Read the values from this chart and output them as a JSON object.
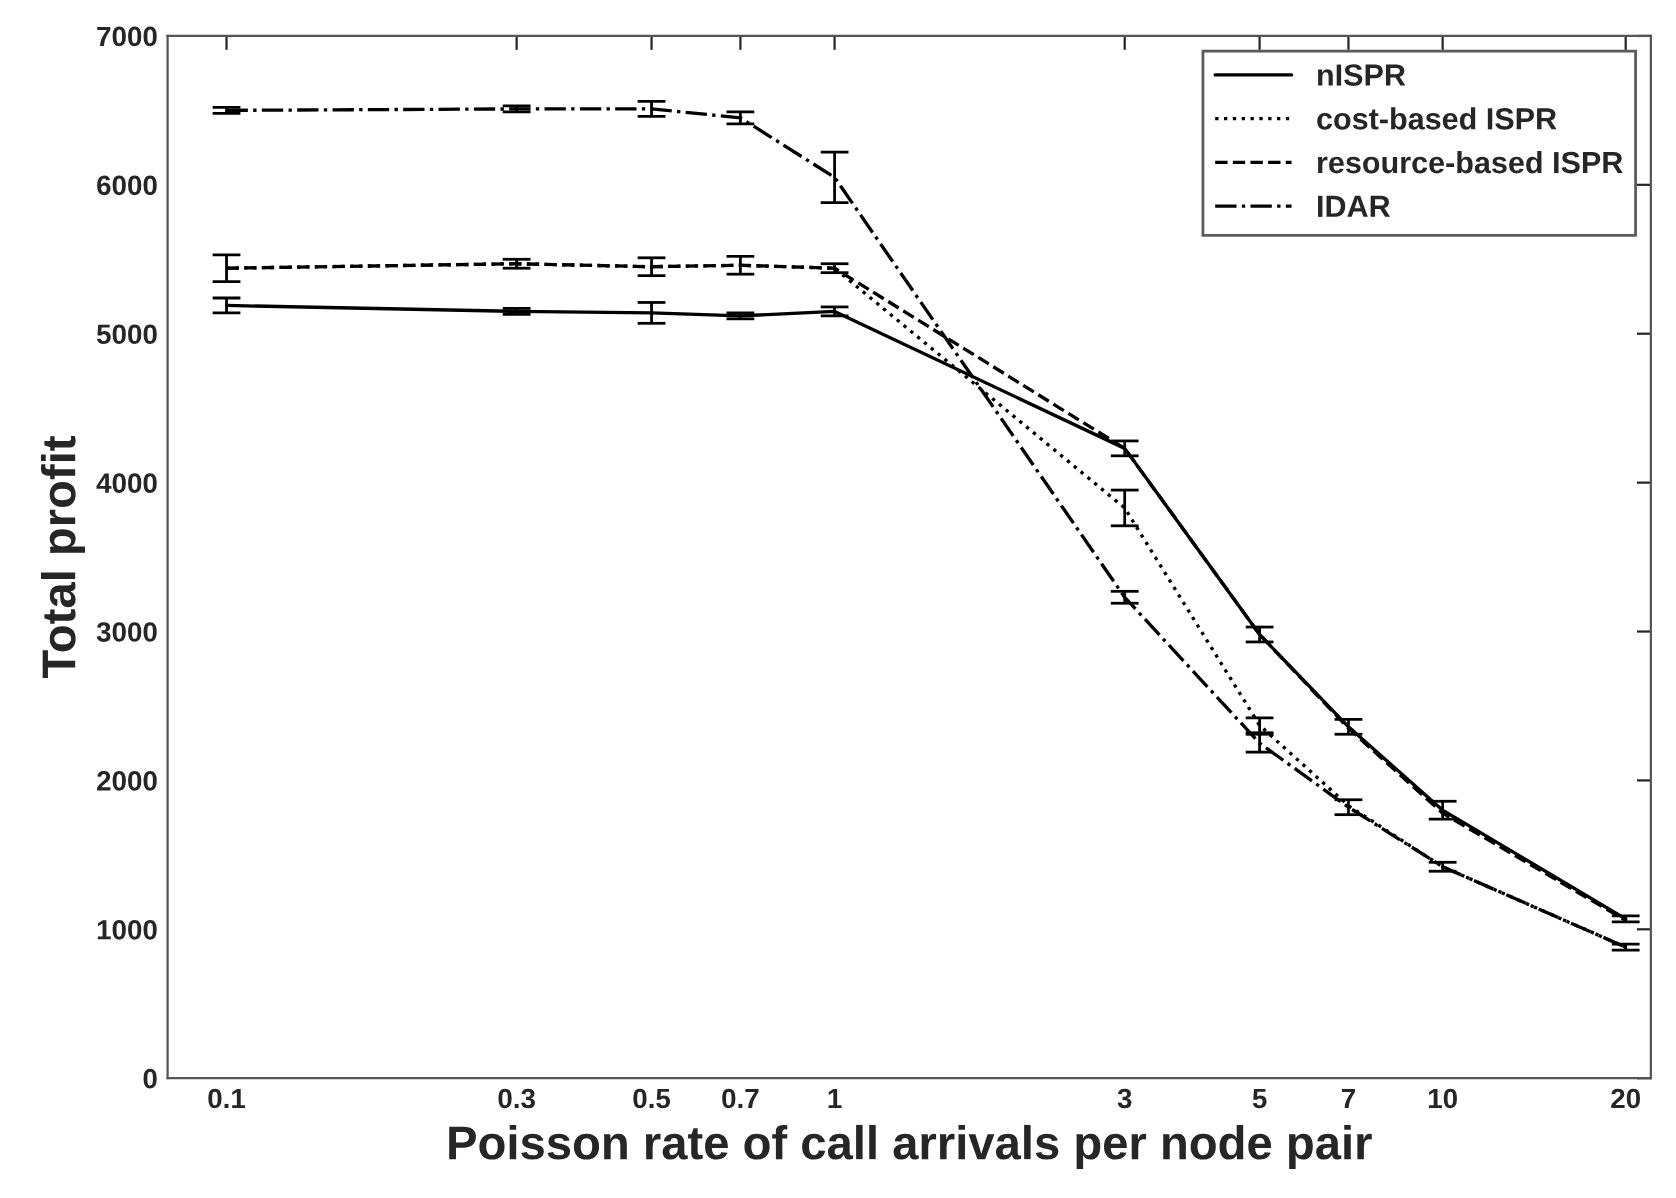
{
  "chart_data": {
    "type": "line",
    "xlabel": "Poisson rate of call arrivals per node pair",
    "ylabel": "Total profit",
    "x": [
      0.1,
      0.3,
      0.5,
      0.7,
      1,
      3,
      5,
      7,
      10,
      20
    ],
    "log": "x",
    "xlim": [
      0.08,
      22
    ],
    "ylim": [
      0,
      7000
    ],
    "xticks": [
      0.1,
      0.3,
      0.5,
      0.7,
      1,
      3,
      5,
      7,
      10,
      20
    ],
    "yticks": [
      0,
      1000,
      2000,
      3000,
      4000,
      5000,
      6000,
      7000
    ],
    "grid": false,
    "legend": "top right",
    "marker": "none",
    "series": [
      {
        "name": "nISPR",
        "color": "#000000",
        "line_style": "solid",
        "values": [
          5190,
          5150,
          5140,
          5120,
          5150,
          4230,
          2980,
          2360,
          1800,
          1070
        ],
        "errors": [
          50,
          20,
          70,
          20,
          30,
          50,
          50,
          50,
          60,
          20
        ]
      },
      {
        "name": "cost-based ISPR",
        "color": "#000000",
        "line_style": "dotted",
        "values": [
          5440,
          5470,
          5450,
          5460,
          5440,
          3830,
          2370,
          1830,
          1420,
          880
        ],
        "errors": [
          null,
          null,
          null,
          null,
          null,
          120,
          50,
          null,
          null,
          null
        ]
      },
      {
        "name": "resource-based ISPR",
        "color": "#000000",
        "line_style": "dashed",
        "values": [
          5440,
          5470,
          5450,
          5460,
          5440,
          4230,
          2980,
          2350,
          1780,
          1060
        ],
        "errors": [
          90,
          30,
          60,
          60,
          30,
          null,
          null,
          null,
          null,
          null
        ]
      },
      {
        "name": "IDAR",
        "color": "#000000",
        "line_style": "dashdot",
        "values": [
          6500,
          6510,
          6510,
          6450,
          6050,
          3230,
          2250,
          1820,
          1420,
          880
        ],
        "errors": [
          20,
          20,
          50,
          40,
          170,
          40,
          60,
          50,
          30,
          20
        ]
      }
    ]
  }
}
